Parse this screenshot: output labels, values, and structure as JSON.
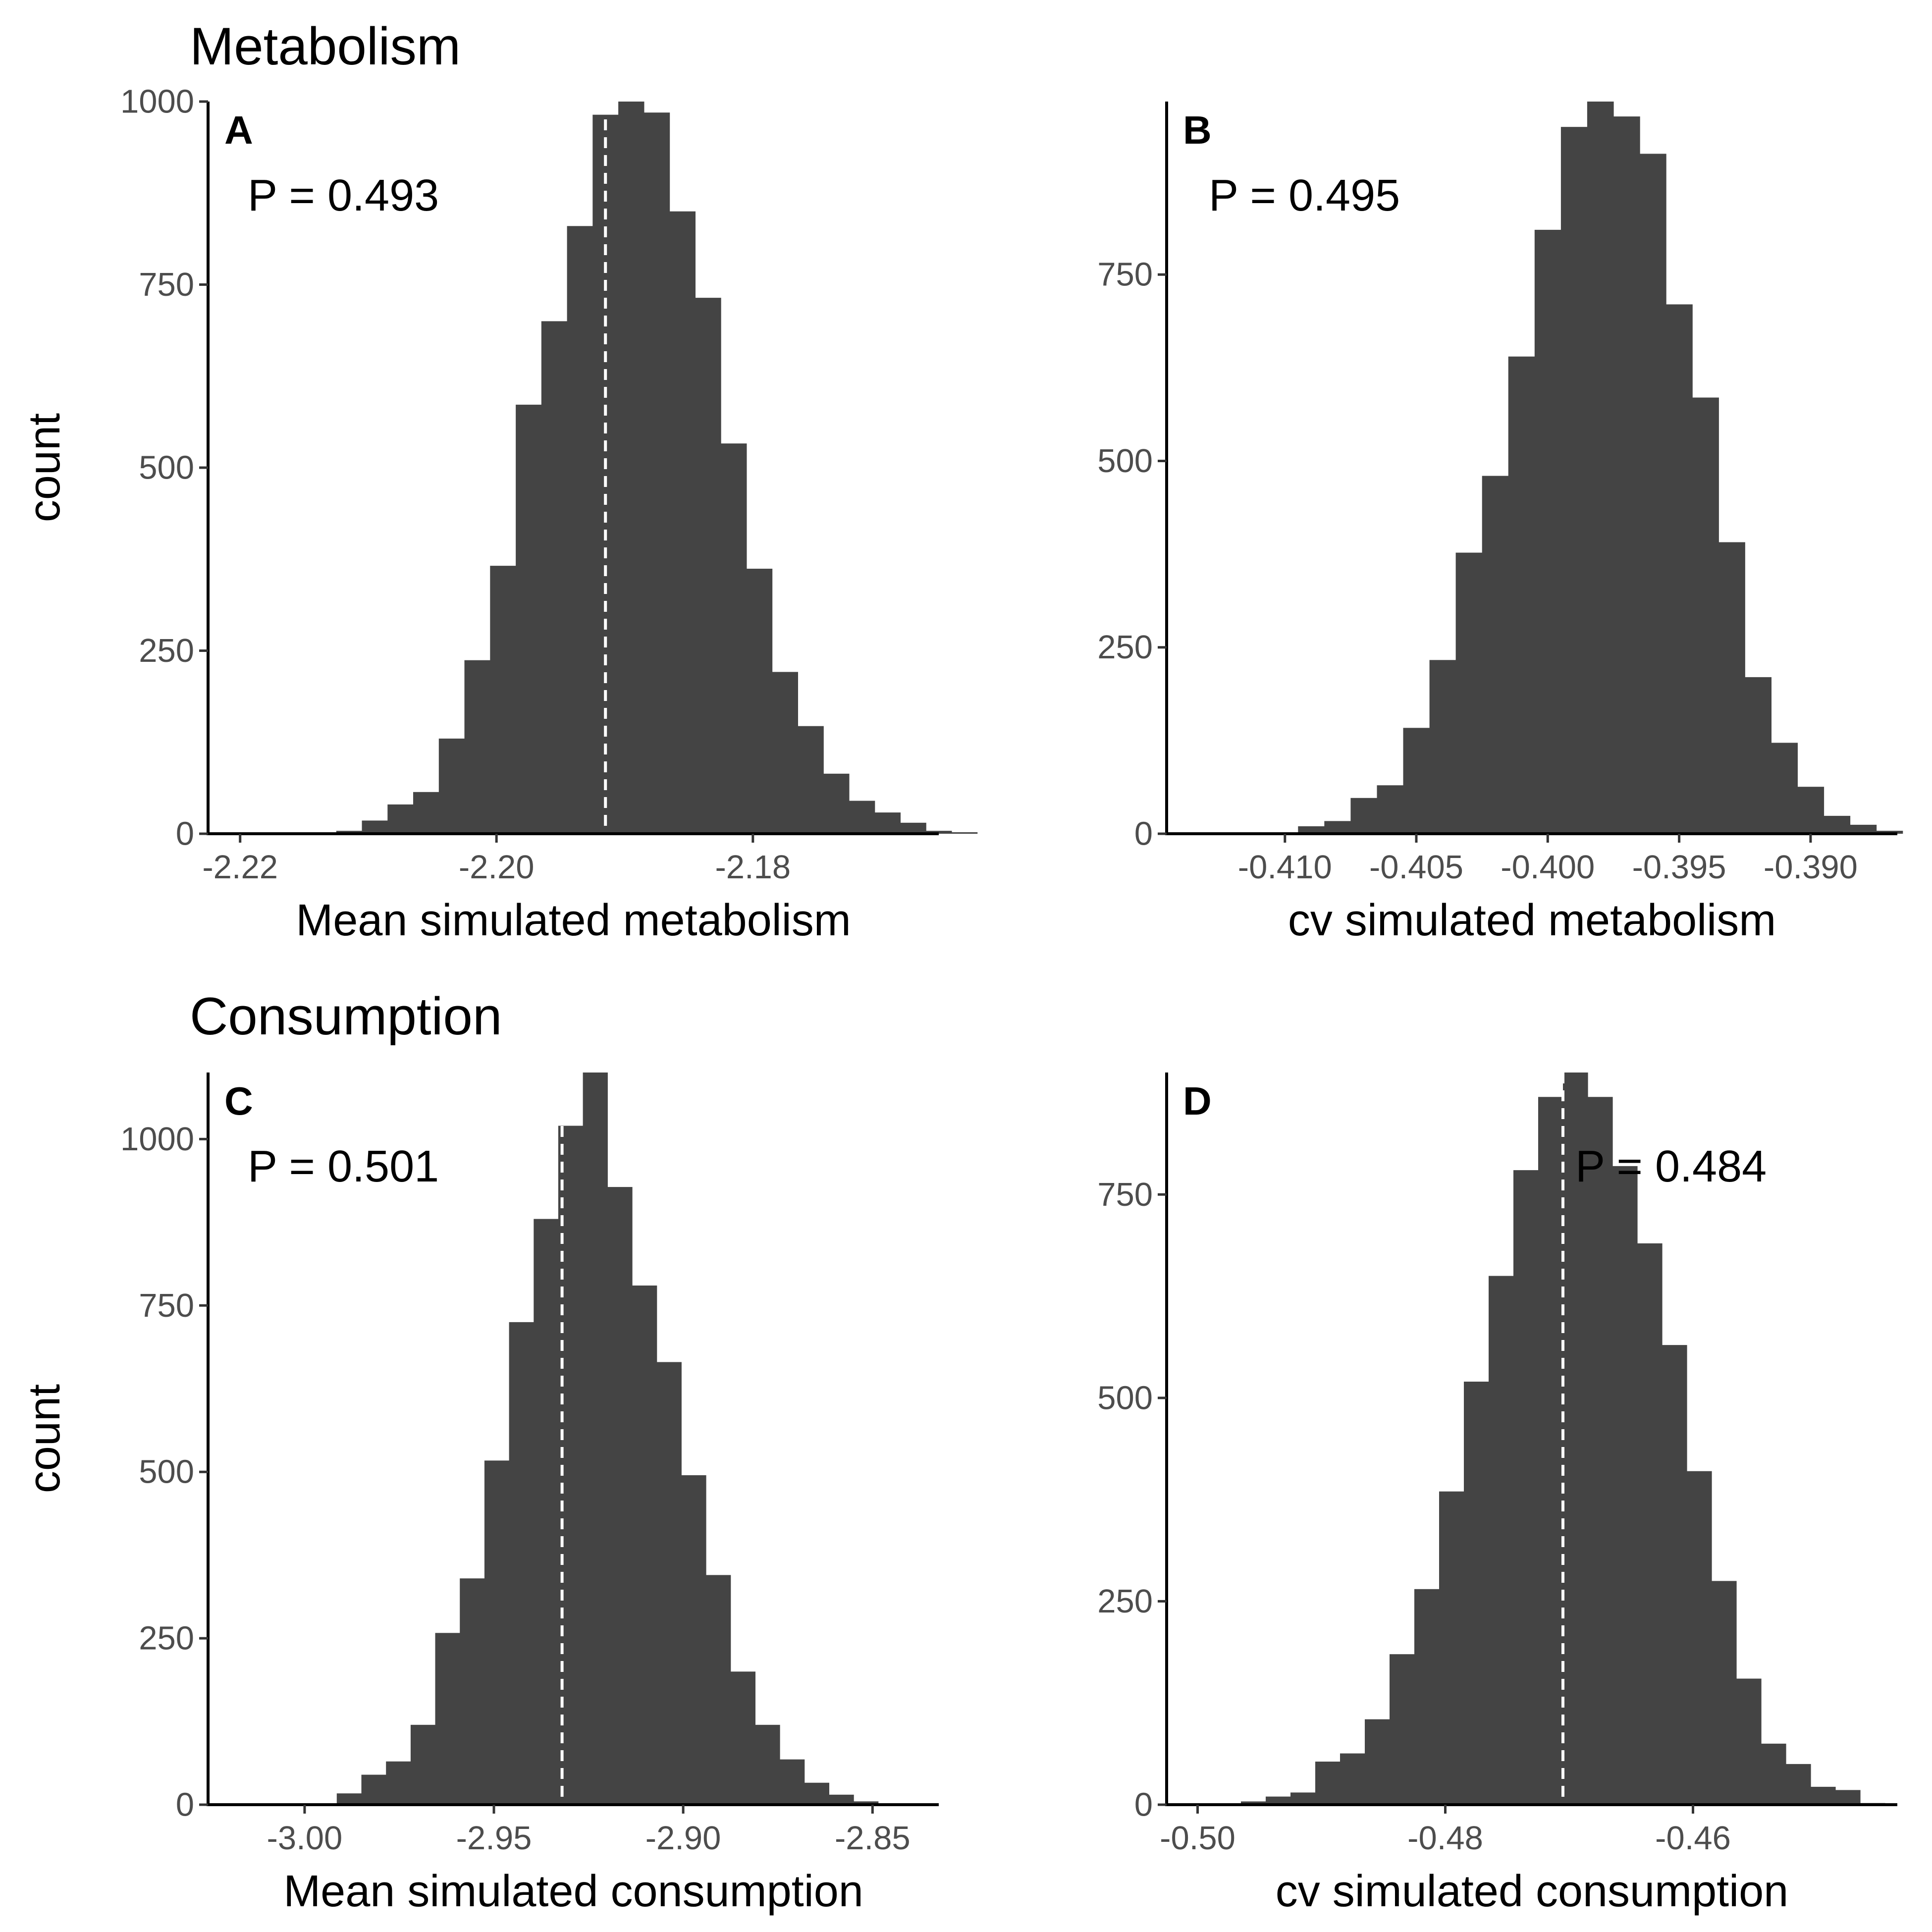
{
  "section_titles": {
    "metabolism": "Metabolism",
    "consumption": "Consumption"
  },
  "chart_data": [
    {
      "type": "bar",
      "panel": "A",
      "xlabel": "Mean simulated metabolism",
      "ylabel": "count",
      "annotation": "P = 0.493",
      "xlim": [
        -2.2225,
        -2.1655
      ],
      "ylim": [
        0,
        1000
      ],
      "x_ticks": [
        -2.22,
        -2.2,
        -2.18
      ],
      "x_tick_labels": [
        "-2.22",
        "-2.20",
        "-2.18"
      ],
      "y_ticks": [
        0,
        250,
        500,
        750,
        1000
      ],
      "y_tick_labels": [
        "0",
        "250",
        "500",
        "750",
        "1000"
      ],
      "bin_start": -2.2205,
      "bin_width": 0.002,
      "counts": [
        0,
        1,
        1,
        1,
        4,
        18,
        40,
        57,
        130,
        237,
        366,
        586,
        700,
        830,
        982,
        1010,
        985,
        850,
        732,
        533,
        362,
        221,
        147,
        82,
        45,
        29,
        15,
        4,
        2
      ],
      "reference_value": -2.1915,
      "grid": false
    },
    {
      "type": "bar",
      "panel": "B",
      "xlabel": "cv simulated metabolism",
      "ylabel": "",
      "annotation": "P = 0.495",
      "xlim": [
        -0.4145,
        -0.3867
      ],
      "ylim": [
        0,
        982
      ],
      "x_ticks": [
        -0.41,
        -0.405,
        -0.4,
        -0.395,
        -0.39
      ],
      "x_tick_labels": [
        "-0.410",
        "-0.405",
        "-0.400",
        "-0.395",
        "-0.390"
      ],
      "y_ticks": [
        0,
        250,
        500,
        750
      ],
      "y_tick_labels": [
        "0",
        "250",
        "500",
        "750"
      ],
      "bin_start": -0.4135,
      "bin_width": 0.001,
      "counts": [
        0,
        1,
        1,
        1,
        10,
        17,
        48,
        65,
        142,
        233,
        377,
        480,
        640,
        810,
        948,
        982,
        962,
        912,
        710,
        585,
        391,
        210,
        122,
        63,
        24,
        12,
        4
      ],
      "grid": false
    },
    {
      "type": "bar",
      "panel": "C",
      "xlabel": "Mean simulated consumption",
      "ylabel": "count",
      "annotation": "P = 0.501",
      "xlim": [
        -3.0255,
        -2.8325
      ],
      "ylim": [
        0,
        1100
      ],
      "x_ticks": [
        -3.0,
        -2.95,
        -2.9,
        -2.85
      ],
      "x_tick_labels": [
        "-3.00",
        "-2.95",
        "-2.90",
        "-2.85"
      ],
      "y_ticks": [
        0,
        250,
        500,
        750,
        1000
      ],
      "y_tick_labels": [
        "0",
        "250",
        "500",
        "750",
        "1000"
      ],
      "bin_start": -3.0175,
      "bin_width": 0.0065,
      "counts": [
        0,
        1,
        1,
        1,
        17,
        45,
        65,
        120,
        258,
        340,
        517,
        725,
        880,
        1020,
        1127,
        928,
        780,
        665,
        495,
        345,
        200,
        120,
        68,
        33,
        15,
        5,
        1,
        1
      ],
      "reference_value": -2.932,
      "grid": false
    },
    {
      "type": "bar",
      "panel": "D",
      "xlabel": "cv simulated consumption",
      "ylabel": "",
      "annotation": "P = 0.484",
      "xlim": [
        -0.5025,
        -0.4435
      ],
      "ylim": [
        0,
        900
      ],
      "x_ticks": [
        -0.5,
        -0.48,
        -0.46
      ],
      "x_tick_labels": [
        "-0.50",
        "-0.48",
        "-0.46"
      ],
      "y_ticks": [
        0,
        250,
        500,
        750
      ],
      "y_tick_labels": [
        "0",
        "250",
        "500",
        "750"
      ],
      "bin_start": -0.5005,
      "bin_width": 0.002,
      "counts": [
        0,
        1,
        4,
        10,
        15,
        53,
        63,
        105,
        185,
        265,
        385,
        520,
        650,
        780,
        870,
        903,
        870,
        785,
        690,
        565,
        410,
        275,
        155,
        75,
        50,
        22,
        18,
        2
      ],
      "reference_value": -0.4705,
      "grid": false
    }
  ]
}
